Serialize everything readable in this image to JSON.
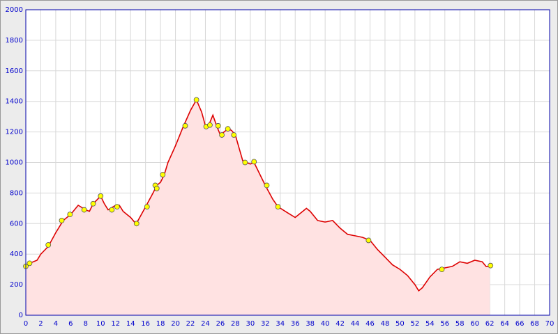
{
  "chart_data": {
    "type": "area",
    "grid": true,
    "xlim": [
      0,
      70
    ],
    "xticks": [
      0,
      2,
      4,
      6,
      8,
      10,
      12,
      14,
      16,
      18,
      20,
      22,
      24,
      26,
      28,
      30,
      32,
      34,
      36,
      38,
      40,
      42,
      44,
      46,
      48,
      50,
      52,
      54,
      56,
      58,
      60,
      62,
      64,
      66,
      68,
      70
    ],
    "ylim": [
      0,
      2000
    ],
    "yticks": [
      0,
      200,
      400,
      600,
      800,
      1000,
      1200,
      1400,
      1600,
      1800,
      2000
    ],
    "series": [
      {
        "color": "#dd0000",
        "fill": "#ffe2e2",
        "x": [
          0,
          0.5,
          1.5,
          2,
          3,
          4,
          5,
          6,
          7,
          8,
          8.5,
          9,
          10,
          10.5,
          11,
          12,
          12.5,
          13,
          14,
          14.7,
          15,
          16,
          17,
          17.5,
          18,
          18.5,
          19,
          20,
          21,
          22,
          22.8,
          23.5,
          24,
          24.5,
          25,
          25.5,
          26,
          27,
          27.5,
          28,
          29,
          30,
          30.5,
          31,
          32,
          33,
          33.7,
          35,
          36,
          37,
          37.5,
          38,
          39,
          40,
          41,
          42,
          43,
          44,
          45,
          46,
          47,
          48,
          49,
          50,
          51,
          52,
          52.5,
          53,
          54,
          55,
          56,
          57,
          58,
          59,
          60,
          61,
          61.5,
          62
        ],
        "values": [
          320,
          340,
          360,
          400,
          450,
          540,
          620,
          660,
          720,
          690,
          680,
          730,
          780,
          730,
          690,
          720,
          720,
          680,
          640,
          600,
          620,
          710,
          800,
          850,
          870,
          920,
          1000,
          1110,
          1230,
          1340,
          1410,
          1330,
          1240,
          1250,
          1310,
          1240,
          1180,
          1220,
          1210,
          1180,
          1010,
          990,
          1000,
          950,
          850,
          760,
          710,
          670,
          640,
          680,
          700,
          680,
          620,
          610,
          620,
          570,
          530,
          520,
          510,
          490,
          430,
          380,
          330,
          300,
          260,
          200,
          160,
          180,
          250,
          300,
          310,
          320,
          350,
          340,
          360,
          350,
          320,
          320
        ]
      },
      {
        "type": "scatter",
        "color": "#ffff00",
        "x": [
          0,
          0.5,
          3,
          4.8,
          5.9,
          7.8,
          9,
          10,
          11.5,
          12.2,
          14.8,
          16.2,
          17.3,
          17.5,
          18.3,
          21.3,
          22.8,
          24.1,
          24.6,
          25.7,
          26.2,
          27,
          27.8,
          29.3,
          30.5,
          32.2,
          33.7,
          45.8,
          55.6,
          62.1
        ],
        "values": [
          320,
          340,
          460,
          620,
          660,
          690,
          730,
          780,
          690,
          710,
          600,
          710,
          850,
          830,
          920,
          1240,
          1410,
          1235,
          1245,
          1240,
          1180,
          1220,
          1180,
          1000,
          1005,
          850,
          710,
          490,
          300,
          325
        ]
      }
    ]
  }
}
